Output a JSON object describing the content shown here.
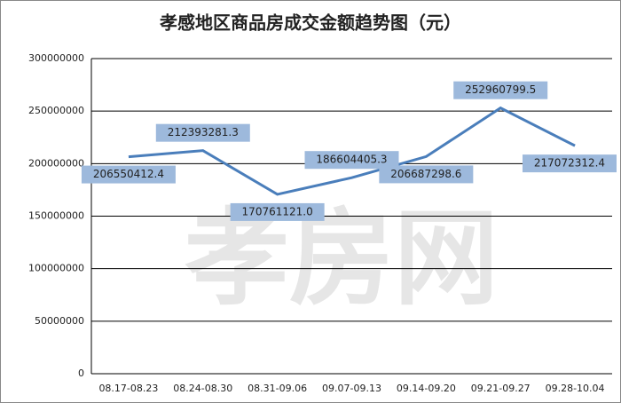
{
  "chart_data": {
    "type": "line",
    "title": "孝感地区商品房成交金额趋势图（元）",
    "watermark": "孝房网",
    "categories": [
      "08.17-08.23",
      "08.24-08.30",
      "08.31-09.06",
      "09.07-09.13",
      "09.14-09.20",
      "09.21-09.27",
      "09.28-10.04"
    ],
    "values": [
      206550412.4,
      212393281.3,
      170761121.0,
      186604405.3,
      206687298.6,
      252960799.5,
      217072312.4
    ],
    "value_labels": [
      "206550412.4",
      "212393281.3",
      "170761121.0",
      "186604405.3",
      "206687298.6",
      "252960799.5",
      "217072312.4"
    ],
    "color": "#4a7ebb",
    "ylim": [
      0,
      300000000
    ],
    "yticks": [
      0,
      50000000,
      100000000,
      150000000,
      200000000,
      250000000,
      300000000
    ],
    "grid": true
  }
}
